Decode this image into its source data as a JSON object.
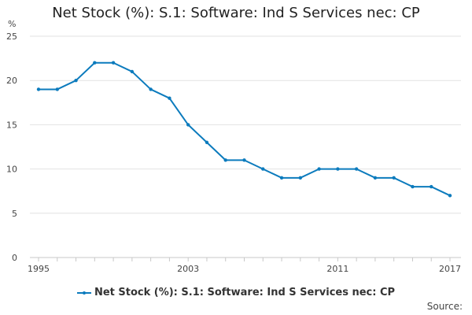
{
  "chart_data": {
    "type": "line",
    "title": "Net Stock (%): S.1: Software: Ind S Services nec: CP",
    "ylabel": "%",
    "xlabel": "",
    "ylim": [
      0,
      25
    ],
    "yticks": [
      0,
      5,
      10,
      15,
      20,
      25
    ],
    "xlim": [
      1995,
      2017
    ],
    "xtick_labels": [
      "1995",
      "2003",
      "2011",
      "2017"
    ],
    "grid": "horizontal",
    "legend_position": "bottom",
    "x": [
      1995,
      1996,
      1997,
      1998,
      1999,
      2000,
      2001,
      2002,
      2003,
      2004,
      2005,
      2006,
      2007,
      2008,
      2009,
      2010,
      2011,
      2012,
      2013,
      2014,
      2015,
      2016,
      2017
    ],
    "series": [
      {
        "name": "Net Stock (%): S.1: Software: Ind S Services nec: CP",
        "color": "#0c7bbd",
        "values": [
          19,
          19,
          20,
          22,
          22,
          21,
          19,
          18,
          15,
          13,
          11,
          11,
          10,
          9,
          9,
          10,
          10,
          10,
          9,
          9,
          8,
          8,
          7
        ]
      }
    ]
  },
  "source_label": "Source:"
}
